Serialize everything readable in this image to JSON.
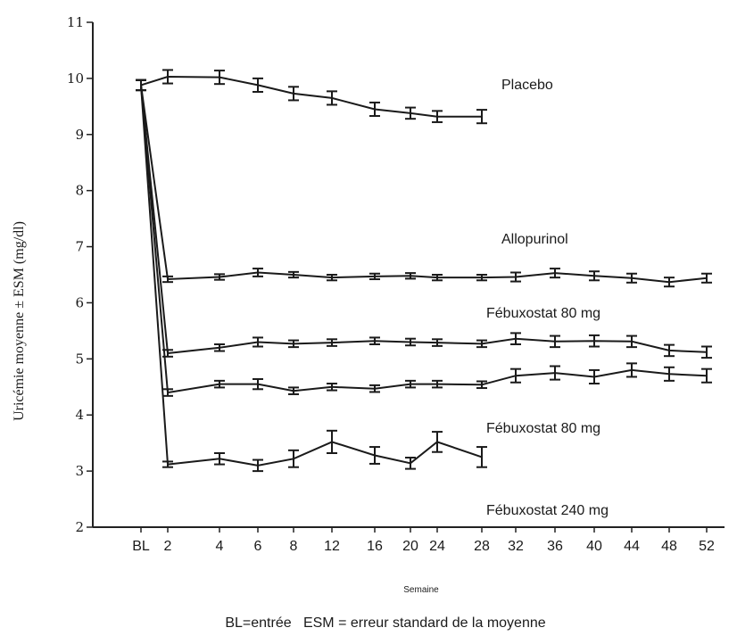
{
  "chart_data": {
    "type": "line",
    "title": "",
    "xlabel": "Semaine",
    "ylabel": "Uricémie moyenne ± ESM (mg/dl)",
    "footnote": "BL=entrée   ESM = erreur standard de la moyenne",
    "ylim": [
      2,
      11
    ],
    "yticks": [
      "2",
      "3",
      "4",
      "5",
      "6",
      "7",
      "8",
      "9",
      "10",
      "11"
    ],
    "categories": [
      "BL",
      "2",
      "4",
      "6",
      "8",
      "12",
      "16",
      "20",
      "24",
      "28",
      "32",
      "36",
      "40",
      "44",
      "48",
      "52"
    ],
    "grid": false,
    "series": [
      {
        "name": "Placebo",
        "values": [
          9.88,
          10.03,
          10.02,
          9.88,
          9.73,
          9.65,
          9.45,
          9.38,
          9.32,
          9.32,
          null,
          null,
          null,
          null,
          null,
          null
        ],
        "errors": [
          0.09,
          0.12,
          0.12,
          0.12,
          0.12,
          0.12,
          0.12,
          0.1,
          0.1,
          0.12,
          null,
          null,
          null,
          null,
          null,
          null
        ]
      },
      {
        "name": "Allopurinol",
        "values": [
          9.88,
          6.42,
          6.46,
          6.54,
          6.5,
          6.45,
          6.47,
          6.48,
          6.45,
          6.45,
          6.46,
          6.53,
          6.48,
          6.44,
          6.37,
          6.44
        ],
        "errors": [
          0.09,
          0.05,
          0.05,
          0.07,
          0.05,
          0.05,
          0.05,
          0.05,
          0.05,
          0.05,
          0.08,
          0.08,
          0.08,
          0.08,
          0.08,
          0.08
        ]
      },
      {
        "name": "Fébuxostat 80 mg",
        "values": [
          9.88,
          5.1,
          5.2,
          5.3,
          5.27,
          5.29,
          5.32,
          5.3,
          5.29,
          5.27,
          5.36,
          5.31,
          5.32,
          5.31,
          5.15,
          5.12
        ],
        "errors": [
          0.09,
          0.06,
          0.06,
          0.08,
          0.06,
          0.06,
          0.06,
          0.06,
          0.06,
          0.06,
          0.1,
          0.1,
          0.1,
          0.1,
          0.1,
          0.1
        ]
      },
      {
        "name": "Fébuxostat 80 mg",
        "values": [
          9.88,
          4.4,
          4.55,
          4.55,
          4.43,
          4.5,
          4.47,
          4.55,
          4.55,
          4.54,
          4.7,
          4.75,
          4.68,
          4.8,
          4.73,
          4.7
        ],
        "errors": [
          0.09,
          0.06,
          0.06,
          0.09,
          0.06,
          0.06,
          0.06,
          0.06,
          0.06,
          0.06,
          0.12,
          0.12,
          0.12,
          0.12,
          0.12,
          0.12
        ]
      },
      {
        "name": "Fébuxostat  240 mg",
        "values": [
          9.88,
          3.12,
          3.22,
          3.1,
          3.22,
          3.52,
          3.28,
          3.14,
          3.52,
          3.25,
          null,
          null,
          null,
          null,
          null,
          null
        ],
        "errors": [
          0.09,
          0.05,
          0.1,
          0.1,
          0.15,
          0.2,
          0.15,
          0.1,
          0.18,
          0.18,
          null,
          null,
          null,
          null,
          null,
          null
        ]
      }
    ]
  }
}
